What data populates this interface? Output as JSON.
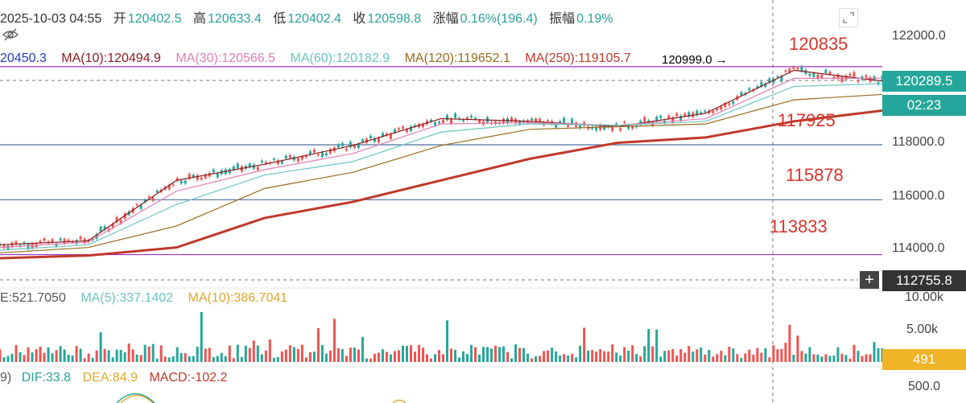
{
  "header": {
    "datetime": "2025-10-03 04:55",
    "open_label": "开",
    "open": "120402.5",
    "high_label": "高",
    "high": "120633.4",
    "low_label": "低",
    "low": "120402.4",
    "close_label": "收",
    "close": "120598.8",
    "change_label": "涨幅",
    "change": "0.16%(196.4)",
    "amplitude_label": "振幅",
    "amplitude": "0.19%"
  },
  "ma": [
    {
      "text": "20450.3",
      "color": "#1f3fbf"
    },
    {
      "text": "MA(10):120494.9",
      "color": "#8b1a1a"
    },
    {
      "text": "MA(30):120566.5",
      "color": "#e07fb5"
    },
    {
      "text": "MA(60):120182.9",
      "color": "#6cc4c0"
    },
    {
      "text": "MA(120):119652.1",
      "color": "#9a6a1e"
    },
    {
      "text": "MA(250):119105.7",
      "color": "#c0392b"
    }
  ],
  "annotation_high": "120999.0 →",
  "price_axis": [
    "122000.0",
    "118000.0",
    "116000.0",
    "114000.0"
  ],
  "current_price": "120289.5",
  "countdown": "02:23",
  "crosshair_price": "112755.8",
  "levels": [
    "120835",
    "117925",
    "115878",
    "113833"
  ],
  "volume": {
    "vol": "E:521.7050",
    "ma5": "MA(5):337.1402",
    "ma10": "MA(10):386.7041",
    "axis": [
      "10.00k",
      "5.00k"
    ],
    "current": "491"
  },
  "macd": {
    "prefix": "9)",
    "dif": "DIF:33.8",
    "dea": "DEA:84.9",
    "macd": "MACD:-102.2",
    "axis": "500.0"
  },
  "colors": {
    "up": "#26a69a",
    "down": "#ef5350",
    "ma10": "#8b1a1a",
    "ma30": "#e07fb5",
    "ma60": "#6cc4c0",
    "ma120": "#9a6a1e",
    "ma250": "#c0392b",
    "level": "#d9342b"
  },
  "chart_data": {
    "type": "line",
    "title": "",
    "y_axis_range": [
      112700,
      122500
    ],
    "series": [
      {
        "name": "MA(10)",
        "x": [
          0,
          10,
          20,
          30,
          40,
          50,
          60,
          70,
          80,
          90,
          100
        ],
        "values": [
          114200,
          114350,
          116600,
          117200,
          117900,
          118900,
          118800,
          118600,
          119100,
          120700,
          120300
        ]
      },
      {
        "name": "MA(30)",
        "x": [
          0,
          10,
          20,
          30,
          40,
          50,
          60,
          70,
          80,
          90,
          100
        ],
        "values": [
          114100,
          114300,
          116200,
          117000,
          117600,
          118700,
          118750,
          118650,
          118900,
          120400,
          120400
        ]
      },
      {
        "name": "MA(60)",
        "x": [
          0,
          10,
          20,
          30,
          40,
          50,
          60,
          70,
          80,
          90,
          100
        ],
        "values": [
          114000,
          114200,
          115700,
          116800,
          117300,
          118400,
          118700,
          118650,
          118800,
          120100,
          120200
        ]
      },
      {
        "name": "MA(120)",
        "x": [
          0,
          10,
          20,
          30,
          40,
          50,
          60,
          70,
          80,
          90,
          100
        ],
        "values": [
          113900,
          114100,
          114900,
          116300,
          116900,
          117900,
          118500,
          118600,
          118700,
          119600,
          119800
        ]
      },
      {
        "name": "MA(250)",
        "x": [
          0,
          10,
          20,
          30,
          40,
          50,
          60,
          70,
          80,
          90,
          100
        ],
        "values": [
          113700,
          113800,
          114100,
          115200,
          115800,
          116600,
          117400,
          118000,
          118200,
          118800,
          119200
        ]
      }
    ],
    "horizontal_levels": [
      120835,
      117925,
      115878,
      113833
    ],
    "ticks": [
      122000,
      118000,
      116000,
      114000
    ]
  }
}
